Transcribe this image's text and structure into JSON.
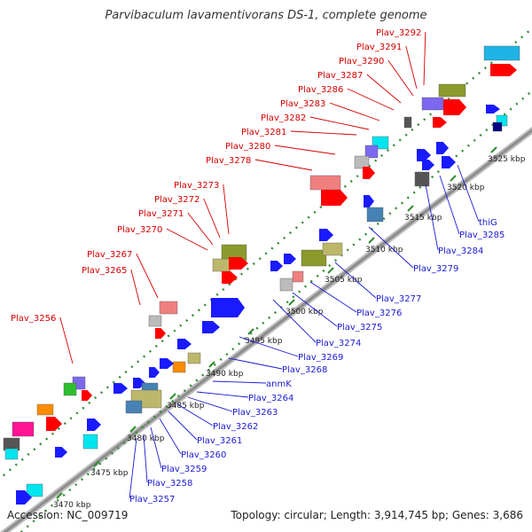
{
  "title": "Parvibaculum lavamentivorans DS-1, complete genome",
  "accession": "Accession: NC_009719",
  "summary": "Topology: circular; Length: 3,914,745 bp; Genes: 3,686",
  "colors": {
    "backbone": "#8c8c8c",
    "dotted_track": "#2e8b2e",
    "tick_mark": "#2e8b2e",
    "upper_label": "#d40000",
    "lower_label": "#1a1ad4",
    "red": "#ff0000",
    "pink": "#f08080",
    "blue": "#1a1aff",
    "steel": "#4682b4",
    "olive": "#8b9a2a",
    "khaki": "#bdb76b",
    "green": "#2fbf2f",
    "cyan": "#00e5ee",
    "skyblue": "#1eb4e6",
    "gray": "#bbbbbb",
    "darkgray": "#555555",
    "purple": "#7b68ee",
    "orange": "#ff8c00",
    "magenta": "#ff1493",
    "navy": "#000080"
  },
  "kbp_labels": [
    "3470 kbp",
    "3475 kbp",
    "3480 kbp",
    "3485 kbp",
    "3490 kbp",
    "3495 kbp",
    "3500 kbp",
    "3505 kbp",
    "3510 kbp",
    "3515 kbp",
    "3520 kbp",
    "3525 kbp"
  ],
  "upper_genes": [
    "Plav_3256",
    "Plav_3265",
    "Plav_3267",
    "Plav_3270",
    "Plav_3271",
    "Plav_3272",
    "Plav_3273",
    "Plav_3278",
    "Plav_3280",
    "Plav_3281",
    "Plav_3282",
    "Plav_3283",
    "Plav_3286",
    "Plav_3287",
    "Plav_3290",
    "Plav_3291",
    "Plav_3292"
  ],
  "lower_genes": [
    "Plav_3257",
    "Plav_3258",
    "Plav_3259",
    "Plav_3260",
    "Plav_3261",
    "Plav_3262",
    "Plav_3263",
    "Plav_3264",
    "anmK",
    "Plav_3268",
    "Plav_3269",
    "Plav_3274",
    "Plav_3275",
    "Plav_3276",
    "Plav_3277",
    "Plav_3279",
    "Plav_3284",
    "Plav_3285",
    "thiG"
  ]
}
